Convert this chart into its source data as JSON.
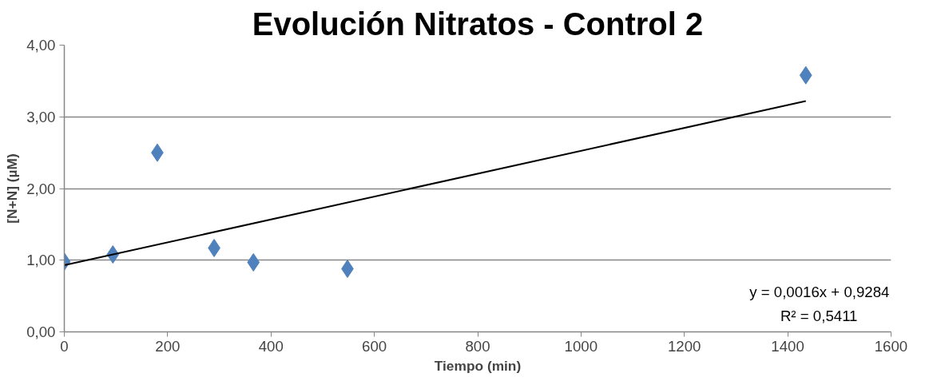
{
  "chart_data": {
    "type": "scatter",
    "title": "Evolución Nitratos - Control 2",
    "xlabel": "Tiempo (min)",
    "ylabel": "[N+N] (µM)",
    "x": [
      0,
      94,
      180,
      290,
      366,
      548,
      1435
    ],
    "series": [
      {
        "color": "#4f81bd",
        "marker": "diamond",
        "values": [
          0.98,
          1.08,
          2.5,
          1.17,
          0.97,
          0.88,
          3.58
        ]
      },
      {
        "type": "line",
        "color": "#000000",
        "x": [
          0,
          1435
        ],
        "values": [
          0.93,
          3.22
        ],
        "line_style": "solid"
      }
    ],
    "xlim": [
      0,
      1600
    ],
    "xticks": [
      0,
      200,
      400,
      600,
      800,
      1000,
      1200,
      1400,
      1600
    ],
    "ylim": [
      0,
      4
    ],
    "yticks": [
      {
        "value": 0,
        "label": "0,00"
      },
      {
        "value": 1,
        "label": "1,00"
      },
      {
        "value": 2,
        "label": "2,00"
      },
      {
        "value": 3,
        "label": "3,00"
      },
      {
        "value": 4,
        "label": "4,00"
      }
    ],
    "grid": "y",
    "annotations": [
      "y = 0,0016x + 0,9284",
      "R² = 0,5411"
    ]
  }
}
